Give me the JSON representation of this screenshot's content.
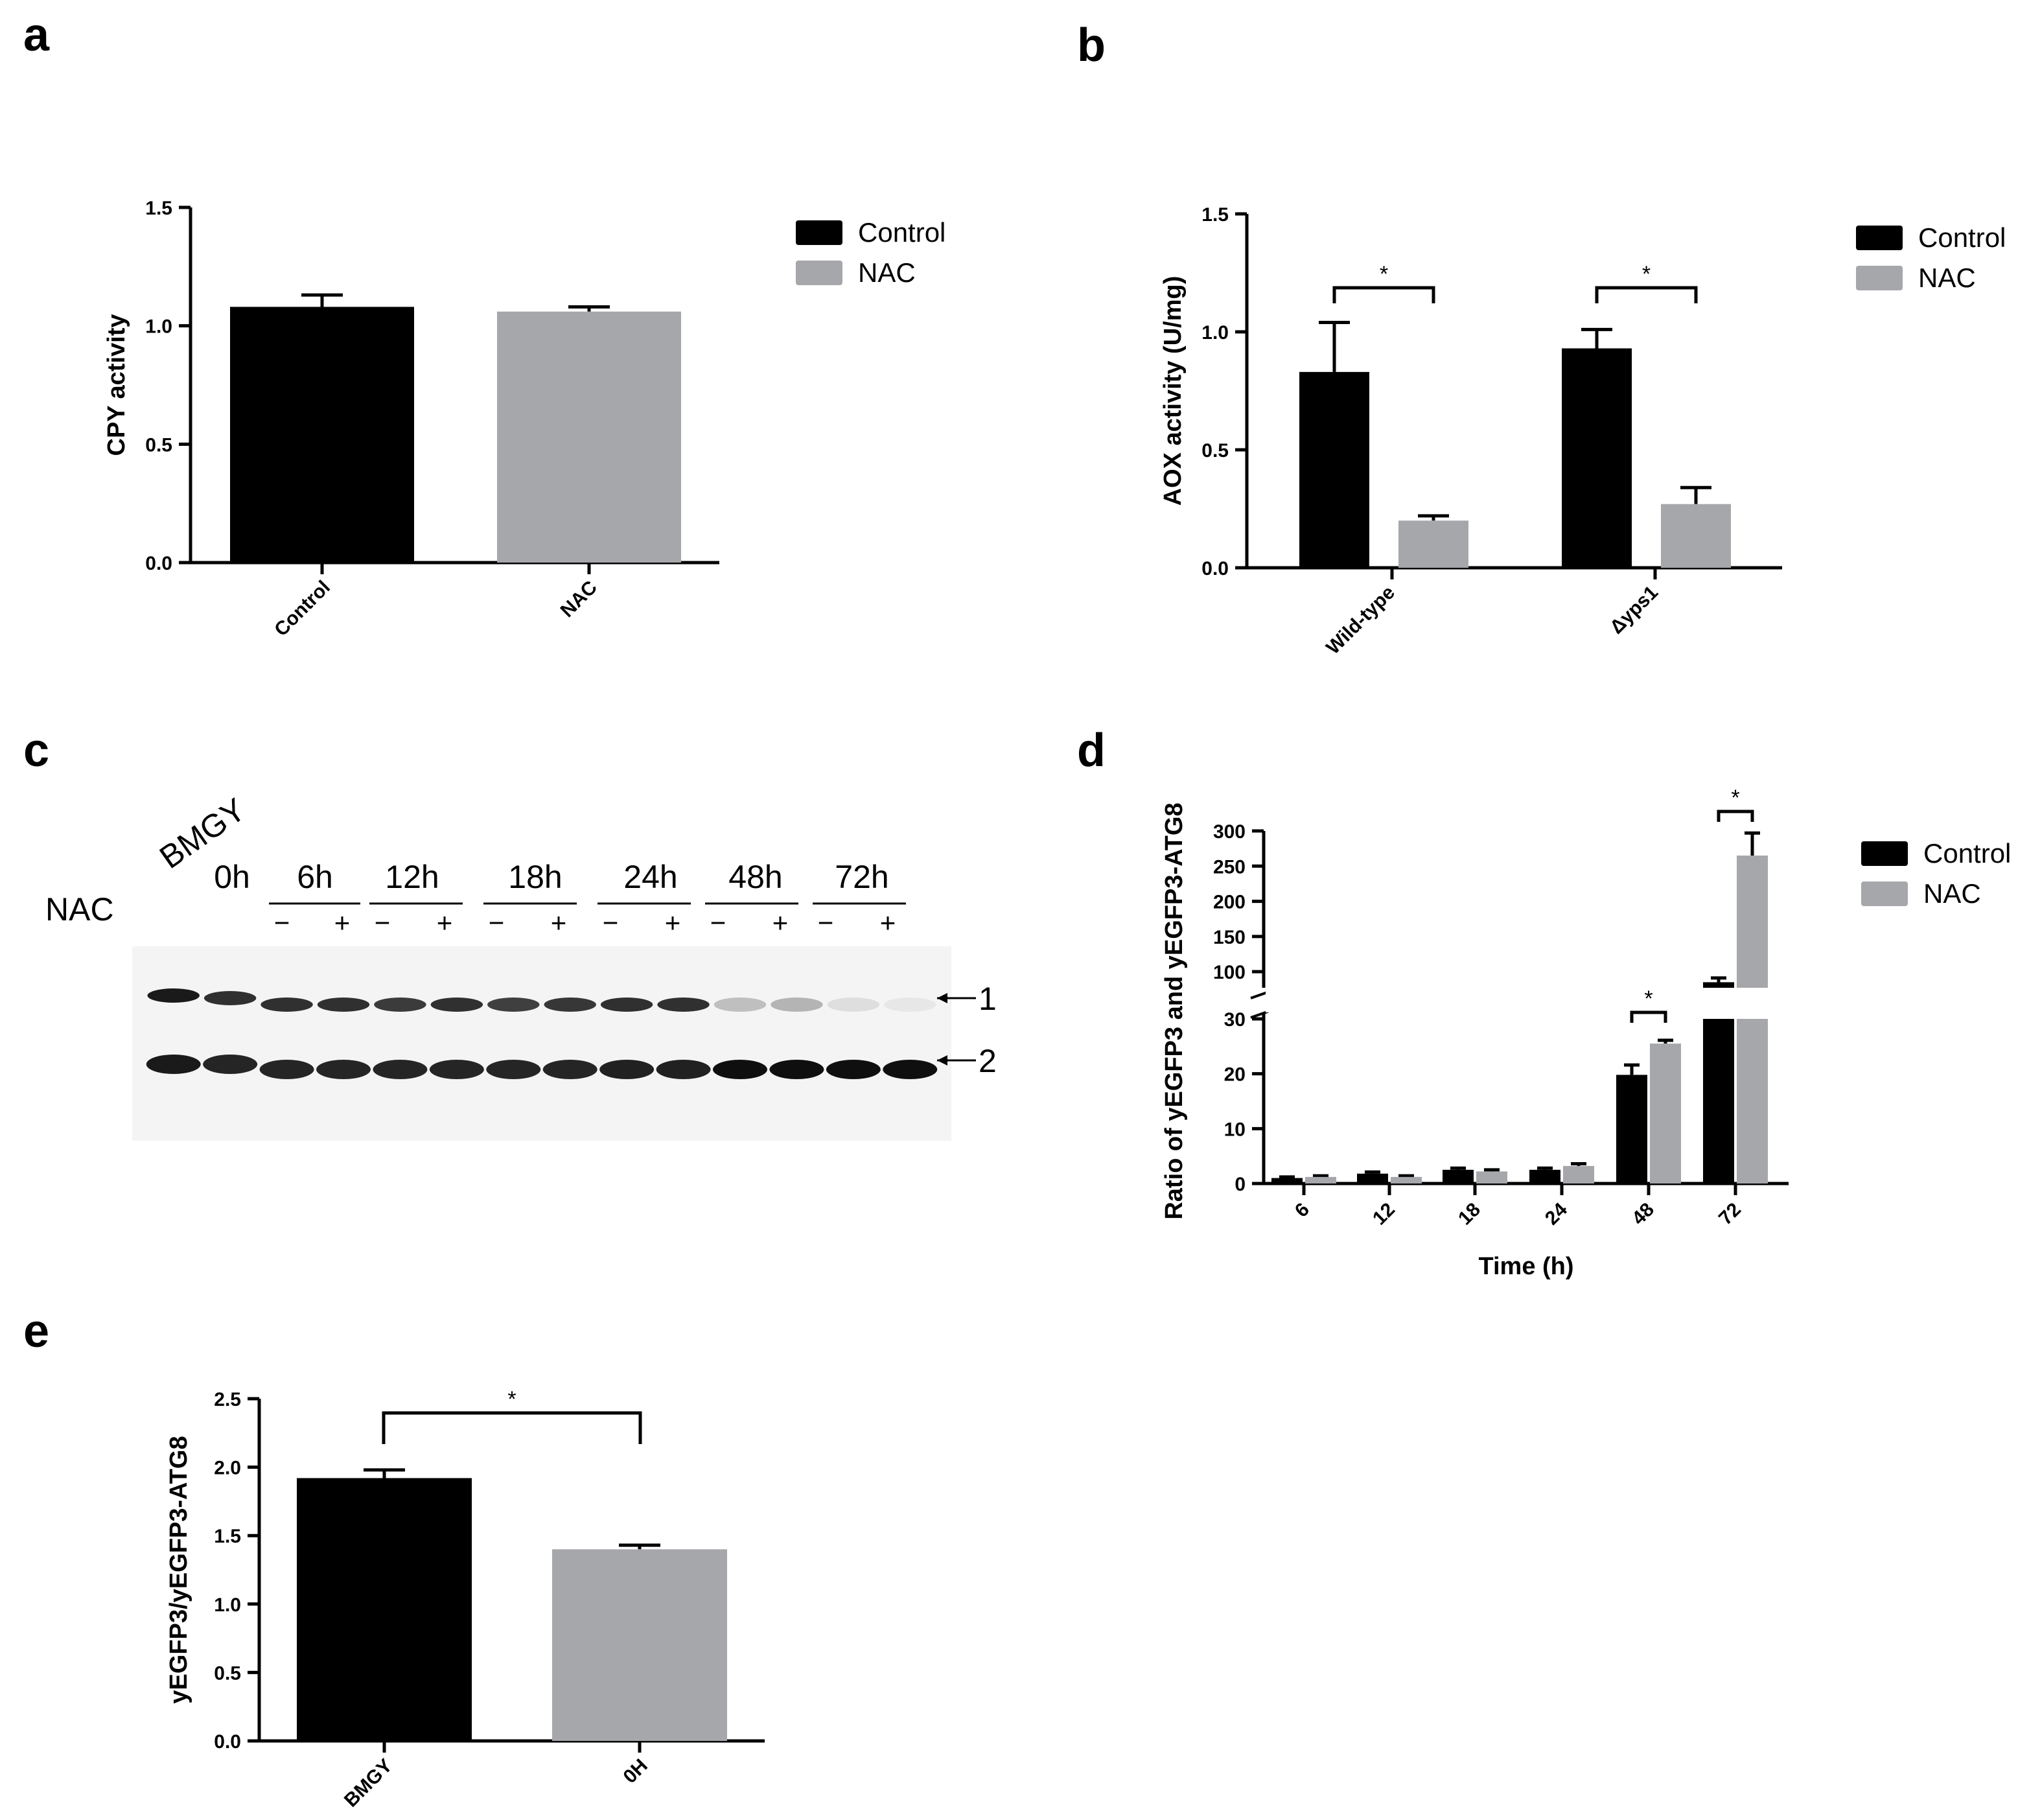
{
  "panels": [
    {
      "letter": "a"
    },
    {
      "letter": "b"
    },
    {
      "letter": "c"
    },
    {
      "letter": "d"
    },
    {
      "letter": "e"
    }
  ],
  "colors": {
    "control": "#000000",
    "nac": "#a6a7aa",
    "axis": "#000000"
  },
  "blot": {
    "medium_label": "BMGY",
    "treatment_label": "NAC",
    "timepoints": [
      "0h",
      "6h",
      "12h",
      "18h",
      "24h",
      "48h",
      "72h"
    ],
    "minus": "−",
    "plus": "+",
    "band_labels": [
      "1",
      "2"
    ],
    "band1_intensity": [
      0.95,
      0.85,
      0.85,
      0.85,
      0.8,
      0.85,
      0.78,
      0.82,
      0.85,
      0.85,
      0.2,
      0.25,
      0.06,
      0.02
    ],
    "band2_intensity": [
      0.95,
      0.9,
      0.9,
      0.9,
      0.9,
      0.9,
      0.9,
      0.9,
      0.92,
      0.92,
      1.0,
      1.0,
      1.0,
      1.0
    ]
  },
  "chart_data": [
    {
      "panel": "a",
      "type": "bar",
      "categories": [
        "Control",
        "NAC"
      ],
      "values": [
        1.08,
        1.06
      ],
      "errors": [
        0.05,
        0.02
      ],
      "ylabel": "CPY activity",
      "xlabel": "",
      "ylim": [
        0,
        1.5
      ],
      "yticks": [
        "0.0",
        "0.5",
        "1.0",
        "1.5"
      ],
      "legend": [
        "Control",
        "NAC"
      ],
      "legend_position": "right"
    },
    {
      "panel": "b",
      "type": "bar",
      "categories": [
        "Wild-type",
        "Δyps1"
      ],
      "series": [
        {
          "name": "Control",
          "values": [
            0.83,
            0.93
          ],
          "errors": [
            0.21,
            0.08
          ]
        },
        {
          "name": "NAC",
          "values": [
            0.2,
            0.27
          ],
          "errors": [
            0.02,
            0.07
          ]
        }
      ],
      "ylabel": "AOX activity (U/mg)",
      "xlabel": "",
      "ylim": [
        0,
        1.5
      ],
      "yticks": [
        "0.0",
        "0.5",
        "1.0",
        "1.5"
      ],
      "significance": [
        "*",
        "*"
      ],
      "legend": [
        "Control",
        "NAC"
      ],
      "legend_position": "right"
    },
    {
      "panel": "d",
      "type": "bar",
      "categories": [
        "6",
        "12",
        "18",
        "24",
        "48",
        "72"
      ],
      "series": [
        {
          "name": "Control",
          "values": [
            1.0,
            1.8,
            2.5,
            2.5,
            19.8,
            85
          ],
          "errors": [
            0.2,
            0.3,
            0.3,
            0.3,
            1.8,
            6
          ]
        },
        {
          "name": "NAC",
          "values": [
            1.2,
            1.2,
            2.2,
            3.2,
            25.5,
            265
          ],
          "errors": [
            0.2,
            0.2,
            0.3,
            0.4,
            0.6,
            32
          ]
        }
      ],
      "ylabel": "Ratio of yEGFP3 and yEGFP3-ATG8",
      "xlabel": "Time (h)",
      "ylim": [
        0,
        300
      ],
      "axis_break": [
        30,
        90
      ],
      "yticks_lower": [
        "0",
        "10",
        "20",
        "30"
      ],
      "yticks_upper": [
        "100",
        "150",
        "200",
        "250",
        "300"
      ],
      "significance": [
        "*",
        "*"
      ],
      "legend": [
        "Control",
        "NAC"
      ],
      "legend_position": "right"
    },
    {
      "panel": "e",
      "type": "bar",
      "categories": [
        "BMGY",
        "0H"
      ],
      "values": [
        1.92,
        1.4
      ],
      "errors": [
        0.06,
        0.03
      ],
      "ylabel": "yEGFP3/yEGFP3-ATG8",
      "xlabel": "",
      "ylim": [
        0,
        2.5
      ],
      "yticks": [
        "0.0",
        "0.5",
        "1.0",
        "1.5",
        "2.0",
        "2.5"
      ],
      "significance": [
        "*"
      ]
    }
  ]
}
